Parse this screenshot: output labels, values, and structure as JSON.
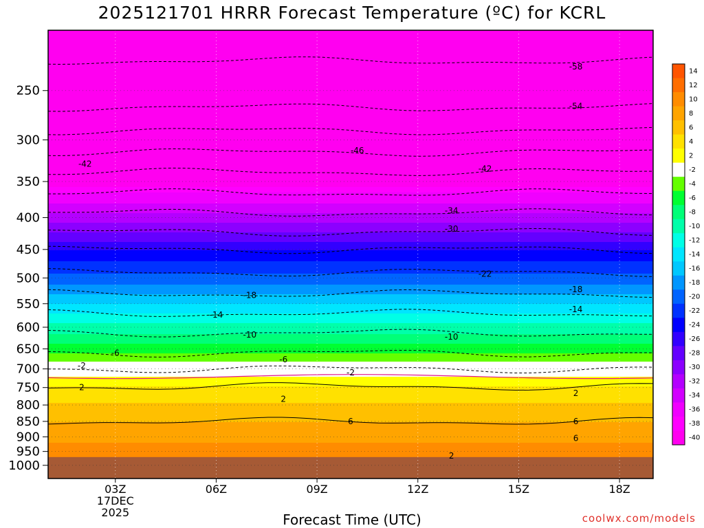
{
  "title": "2025121701 HRRR Forecast Temperature (ºC) for KCRL",
  "credit": "coolwx.com/models",
  "colors": {
    "ground": "#a65a35",
    "contour": "#000000",
    "freezing_line": "#e0158a",
    "grid": "#c8c8c8",
    "credit": "#e0302a"
  },
  "chart_data": {
    "type": "contour",
    "title": "2025121701 HRRR Forecast Temperature (ºC) for KCRL",
    "xlabel": "Forecast Time (UTC)",
    "ylabel": "",
    "x_ticks": [
      "03Z",
      "06Z",
      "09Z",
      "12Z",
      "15Z",
      "18Z"
    ],
    "x_first_tick_sublabels": [
      "17DEC",
      "2025"
    ],
    "x_range_hours": [
      1,
      19
    ],
    "y_ticks": [
      250,
      300,
      350,
      400,
      450,
      500,
      550,
      600,
      650,
      700,
      750,
      800,
      850,
      900,
      950,
      1000
    ],
    "y_axis": "pressure (hPa), log scale, inverted",
    "y_range": [
      200,
      1050
    ],
    "ground_level_hPa": 970,
    "colorbar_labels": [
      "14",
      "12",
      "10",
      "8",
      "6",
      "4",
      "2",
      "-2",
      "-4",
      "-6",
      "-8",
      "-10",
      "-12",
      "-14",
      "-16",
      "-18",
      "-20",
      "-22",
      "-24",
      "-26",
      "-28",
      "-30",
      "-32",
      "-34",
      "-36",
      "-38",
      "-40"
    ],
    "colorbar_colors": [
      "#ff5500",
      "#ff6e00",
      "#ff8c00",
      "#ffa400",
      "#ffc000",
      "#ffe100",
      "#ffff00",
      "#ffffff",
      "#64ff00",
      "#00ff32",
      "#00ff78",
      "#00ffaa",
      "#00ffe6",
      "#00e6ff",
      "#00c8ff",
      "#0096ff",
      "#0064ff",
      "#0032ff",
      "#0000ff",
      "#3200ff",
      "#6400ff",
      "#8c00ff",
      "#b400ff",
      "#d200ff",
      "#f000ff",
      "#ff00ff",
      "#ff00f0"
    ],
    "contour_labels": [
      {
        "text": "-58",
        "x": 16.7,
        "p": 229
      },
      {
        "text": "-54",
        "x": 16.7,
        "p": 265
      },
      {
        "text": "-46",
        "x": 10.2,
        "p": 312
      },
      {
        "text": "-42",
        "x": 2.1,
        "p": 328
      },
      {
        "text": "-42",
        "x": 14.0,
        "p": 334
      },
      {
        "text": "-34",
        "x": 13.0,
        "p": 390
      },
      {
        "text": "-30",
        "x": 13.0,
        "p": 417
      },
      {
        "text": "-22",
        "x": 14.0,
        "p": 493
      },
      {
        "text": "-18",
        "x": 7.0,
        "p": 533
      },
      {
        "text": "-18",
        "x": 16.7,
        "p": 522
      },
      {
        "text": "-14",
        "x": 6.0,
        "p": 573
      },
      {
        "text": "-14",
        "x": 16.7,
        "p": 562
      },
      {
        "text": "-10",
        "x": 7.0,
        "p": 617
      },
      {
        "text": "-10",
        "x": 13.0,
        "p": 622
      },
      {
        "text": "-6",
        "x": 3.0,
        "p": 660
      },
      {
        "text": "-6",
        "x": 8.0,
        "p": 676
      },
      {
        "text": "-2",
        "x": 2.0,
        "p": 692
      },
      {
        "text": "-2",
        "x": 10.0,
        "p": 710
      },
      {
        "text": "2",
        "x": 2.0,
        "p": 750
      },
      {
        "text": "2",
        "x": 8.0,
        "p": 783
      },
      {
        "text": "2",
        "x": 16.7,
        "p": 766
      },
      {
        "text": "6",
        "x": 10.0,
        "p": 850
      },
      {
        "text": "6",
        "x": 16.7,
        "p": 850
      },
      {
        "text": "6",
        "x": 16.7,
        "p": 905
      },
      {
        "text": "2",
        "x": 13.0,
        "p": 965
      }
    ]
  }
}
